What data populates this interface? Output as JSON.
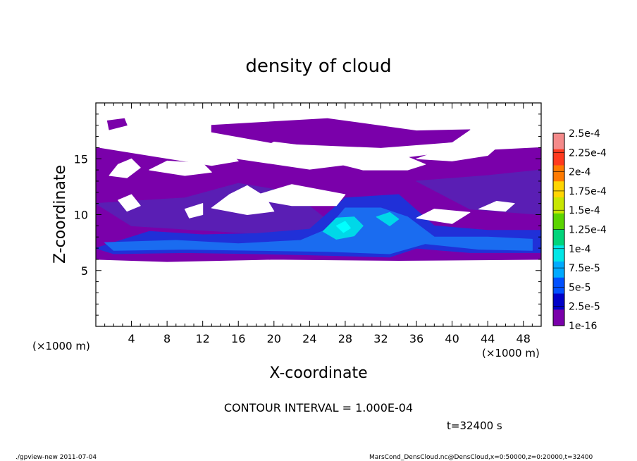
{
  "chart_data": {
    "type": "heatmap",
    "title": "density of cloud",
    "xlabel": "X-coordinate",
    "ylabel": "Z-coordinate",
    "x_unit_left": "(×1000 m)",
    "x_unit_right": "(×1000 m)",
    "xlim": [
      0,
      50
    ],
    "ylim": [
      0,
      20
    ],
    "x_ticks": [
      4,
      8,
      12,
      16,
      20,
      24,
      28,
      32,
      36,
      40,
      44,
      48
    ],
    "y_ticks": [
      5,
      10,
      15
    ],
    "x_tick_labels": [
      "4",
      "8",
      "12",
      "16",
      "20",
      "24",
      "28",
      "32",
      "36",
      "40",
      "44",
      "48"
    ],
    "y_tick_labels": [
      "5",
      "10",
      "15"
    ],
    "colorbar": {
      "labels": [
        "2.5e-4",
        "2.25e-4",
        "2e-4",
        "1.75e-4",
        "1.5e-4",
        "1.25e-4",
        "1e-4",
        "7.5e-5",
        "5e-5",
        "2.5e-5",
        "1e-16"
      ],
      "colors": [
        "#f48a8a",
        "#ff3a1e",
        "#ff7a00",
        "#ffd500",
        "#c8e600",
        "#5ad400",
        "#00d47a",
        "#00e6e6",
        "#00aaff",
        "#0050ff",
        "#0000c8",
        "#7a00aa"
      ]
    },
    "regions": [
      {
        "level": 0,
        "poly": [
          [
            0,
            6
          ],
          [
            0,
            16
          ],
          [
            12,
            15.4
          ],
          [
            24,
            14
          ],
          [
            40,
            15.6
          ],
          [
            50,
            16
          ],
          [
            50,
            6
          ],
          [
            34,
            5.9
          ],
          [
            20,
            6
          ],
          [
            8,
            5.8
          ]
        ]
      },
      {
        "level": 0,
        "poly": [
          [
            1.5,
            17.6
          ],
          [
            3.5,
            18
          ],
          [
            3.2,
            18.6
          ],
          [
            1.3,
            18.4
          ]
        ]
      },
      {
        "level": 0,
        "poly": [
          [
            13,
            18
          ],
          [
            26,
            18.6
          ],
          [
            36,
            17.5
          ],
          [
            42,
            17.6
          ],
          [
            40,
            16.5
          ],
          [
            32,
            16
          ],
          [
            20,
            16.4
          ],
          [
            13,
            17.4
          ]
        ]
      },
      {
        "level": 1,
        "poly": [
          [
            0,
            11
          ],
          [
            10,
            11.5
          ],
          [
            16,
            12.8
          ],
          [
            22,
            12
          ],
          [
            26,
            9.5
          ],
          [
            32,
            8.5
          ],
          [
            24,
            8
          ],
          [
            14,
            8.5
          ],
          [
            4,
            9
          ]
        ]
      },
      {
        "level": 1,
        "poly": [
          [
            36,
            13
          ],
          [
            44,
            13.5
          ],
          [
            50,
            14
          ],
          [
            50,
            10
          ],
          [
            42,
            10.5
          ]
        ]
      },
      {
        "level": 2,
        "poly": [
          [
            0,
            7
          ],
          [
            6,
            8.5
          ],
          [
            12,
            8.2
          ],
          [
            18,
            8.3
          ],
          [
            24,
            8.7
          ],
          [
            28,
            11.5
          ],
          [
            34,
            11.8
          ],
          [
            38,
            9
          ],
          [
            44,
            8.6
          ],
          [
            50,
            8.6
          ],
          [
            50,
            6.6
          ],
          [
            42,
            6.6
          ],
          [
            36,
            7
          ],
          [
            33,
            6.2
          ],
          [
            24,
            6.4
          ],
          [
            18,
            6.5
          ],
          [
            10,
            6.6
          ],
          [
            2,
            6.5
          ]
        ]
      },
      {
        "level": 3,
        "poly": [
          [
            1,
            7.5
          ],
          [
            9,
            7.7
          ],
          [
            16,
            7.4
          ],
          [
            23,
            7.7
          ],
          [
            26,
            8.7
          ],
          [
            28,
            10.6
          ],
          [
            32,
            10.6
          ],
          [
            35,
            9.8
          ],
          [
            38,
            8
          ],
          [
            44,
            8
          ],
          [
            49,
            7.8
          ],
          [
            49,
            6.8
          ],
          [
            43,
            6.9
          ],
          [
            37,
            7.4
          ],
          [
            33,
            6.5
          ],
          [
            26,
            6.7
          ],
          [
            18,
            6.8
          ],
          [
            10,
            6.9
          ],
          [
            2,
            6.8
          ]
        ]
      },
      {
        "level": 4,
        "poly": [
          [
            25.5,
            8.5
          ],
          [
            27,
            9.7
          ],
          [
            29,
            9.8
          ],
          [
            30,
            9
          ],
          [
            29,
            8.1
          ],
          [
            27,
            7.8
          ]
        ]
      },
      {
        "level": 4,
        "poly": [
          [
            31.5,
            9.8
          ],
          [
            33,
            10.2
          ],
          [
            34,
            9.6
          ],
          [
            33,
            9
          ]
        ]
      },
      {
        "level": 5,
        "poly": [
          [
            27,
            9
          ],
          [
            28,
            9.4
          ],
          [
            28.6,
            8.8
          ],
          [
            27.8,
            8.4
          ]
        ]
      }
    ],
    "holes": [
      {
        "poly": [
          [
            0.5,
            16
          ],
          [
            3,
            16.8
          ],
          [
            6,
            17.5
          ],
          [
            12,
            17
          ],
          [
            15,
            15.5
          ],
          [
            16,
            14.8
          ],
          [
            13,
            14.4
          ]
        ]
      },
      {
        "poly": [
          [
            1.5,
            13.5
          ],
          [
            2.5,
            14.5
          ],
          [
            4,
            15
          ],
          [
            5,
            14.2
          ],
          [
            3.5,
            13.3
          ]
        ]
      },
      {
        "poly": [
          [
            6,
            14
          ],
          [
            8,
            14.8
          ],
          [
            12,
            14.6
          ],
          [
            13,
            13.8
          ],
          [
            10,
            13.5
          ]
        ]
      },
      {
        "poly": [
          [
            13,
            10.6
          ],
          [
            15,
            11.8
          ],
          [
            17,
            12.6
          ],
          [
            19,
            11.6
          ],
          [
            20,
            10.3
          ],
          [
            17,
            10
          ]
        ]
      },
      {
        "poly": [
          [
            17,
            11.5
          ],
          [
            22,
            12.7
          ],
          [
            28,
            11.8
          ],
          [
            27,
            10.8
          ],
          [
            22,
            10.8
          ]
        ]
      },
      {
        "poly": [
          [
            2.5,
            11.3
          ],
          [
            4,
            11.8
          ],
          [
            5,
            10.8
          ],
          [
            3.5,
            10.3
          ]
        ]
      },
      {
        "poly": [
          [
            10,
            10.5
          ],
          [
            12,
            11
          ],
          [
            12,
            10
          ],
          [
            10.5,
            9.7
          ]
        ]
      },
      {
        "poly": [
          [
            17,
            15.2
          ],
          [
            20,
            16.5
          ],
          [
            25,
            16
          ],
          [
            27,
            15
          ],
          [
            24,
            14.5
          ],
          [
            20,
            14.7
          ]
        ]
      },
      {
        "poly": [
          [
            27,
            14.6
          ],
          [
            30,
            15.7
          ],
          [
            34,
            15.5
          ],
          [
            37,
            14.5
          ],
          [
            35,
            14
          ],
          [
            30,
            14
          ]
        ]
      },
      {
        "poly": [
          [
            36,
            15
          ],
          [
            41,
            16.4
          ],
          [
            45,
            16
          ],
          [
            44,
            15.3
          ],
          [
            40,
            14.8
          ]
        ]
      },
      {
        "poly": [
          [
            43,
            10.5
          ],
          [
            45,
            11.2
          ],
          [
            47,
            11
          ],
          [
            46,
            10.3
          ]
        ]
      },
      {
        "poly": [
          [
            36,
            9.7
          ],
          [
            38,
            10.5
          ],
          [
            42,
            10.2
          ],
          [
            40,
            9.2
          ]
        ]
      }
    ]
  },
  "annotations": {
    "contour_interval": "CONTOUR INTERVAL = 1.000E-04",
    "time": "t=32400 s",
    "footer_left": "./gpview-new   2011-07-04",
    "footer_right": "MarsCond_DensCloud.nc@DensCloud,x=0:50000,z=0:20000,t=32400"
  }
}
